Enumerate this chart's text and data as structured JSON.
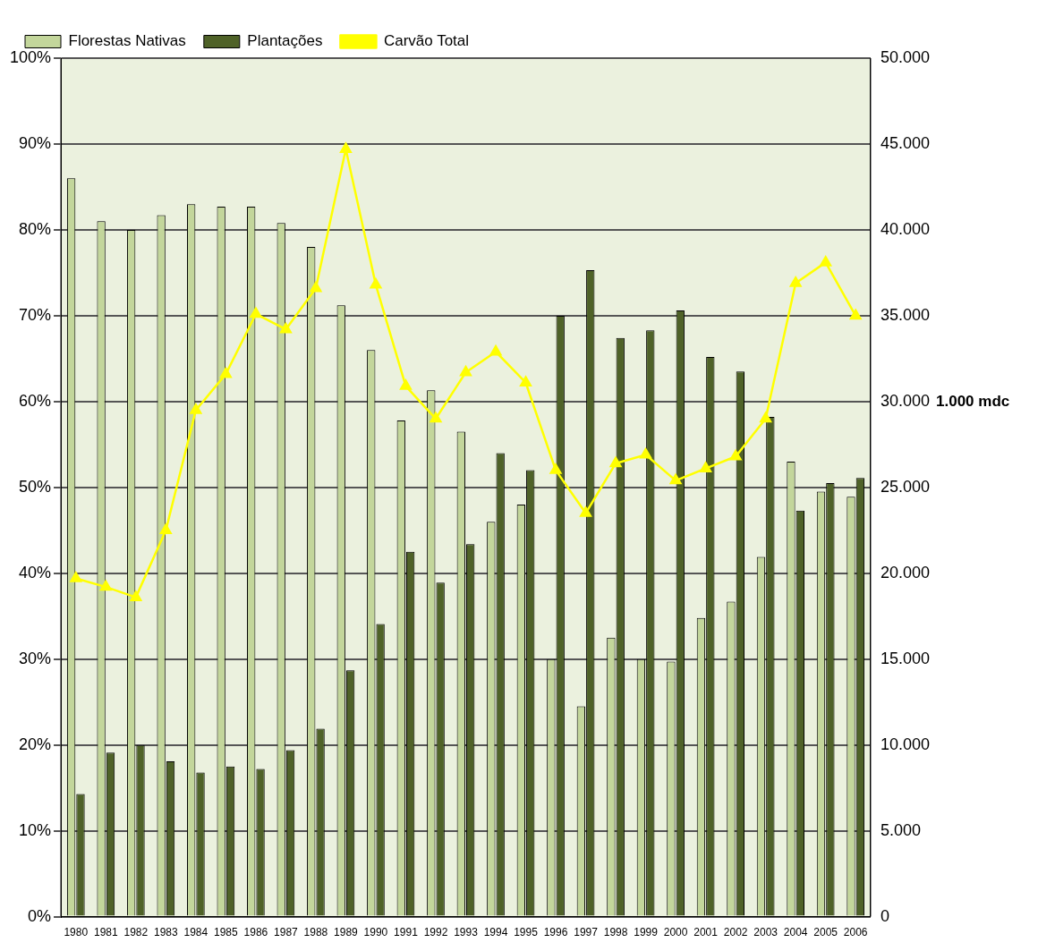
{
  "chart_data": {
    "type": "bar",
    "y2label": "1.000 mdc",
    "legend": "top",
    "grid": "y",
    "marker": "triangle",
    "line_style": "solid",
    "categories": [
      "1980",
      "1981",
      "1982",
      "1983",
      "1984",
      "1985",
      "1986",
      "1987",
      "1988",
      "1989",
      "1990",
      "1991",
      "1992",
      "1993",
      "1994",
      "1995",
      "1996",
      "1997",
      "1998",
      "1999",
      "2000",
      "2001",
      "2002",
      "2003",
      "2004",
      "2005",
      "2006"
    ],
    "ylim": [
      0,
      100
    ],
    "yticks": [
      {
        "value": 0,
        "label": "0%"
      },
      {
        "value": 10,
        "label": "10%"
      },
      {
        "value": 20,
        "label": "20%"
      },
      {
        "value": 30,
        "label": "30%"
      },
      {
        "value": 40,
        "label": "40%"
      },
      {
        "value": 50,
        "label": "50%"
      },
      {
        "value": 60,
        "label": "60%"
      },
      {
        "value": 70,
        "label": "70%"
      },
      {
        "value": 80,
        "label": "80%"
      },
      {
        "value": 90,
        "label": "90%"
      },
      {
        "value": 100,
        "label": "100%"
      }
    ],
    "y2lim": [
      0,
      50000
    ],
    "y2ticks": [
      0,
      {
        "value": 5000,
        "label": "5.000"
      },
      {
        "value": 10000,
        "label": "10.000"
      },
      {
        "value": 15000,
        "label": "15.000"
      },
      {
        "value": 20000,
        "label": "20.000"
      },
      {
        "value": 25000,
        "label": "25.000"
      },
      {
        "value": 30000,
        "label": "30.000"
      },
      {
        "value": 35000,
        "label": "35.000"
      },
      {
        "value": 40000,
        "label": "40.000"
      },
      {
        "value": 45000,
        "label": "45.000"
      },
      {
        "value": 50000,
        "label": "50.000"
      }
    ],
    "series": [
      {
        "name": "Florestas Nativas",
        "color": "#c3d69b",
        "values": [
          86,
          81,
          80,
          81.7,
          83,
          82.7,
          82.7,
          80.8,
          78,
          71.2,
          66,
          57.8,
          61.3,
          56.5,
          46,
          48,
          30,
          24.5,
          32.5,
          30,
          29.7,
          34.8,
          36.7,
          41.9,
          53,
          49.5,
          48.9
        ]
      },
      {
        "name": "Plantações",
        "color": "#4f6228",
        "values": [
          14.3,
          19.1,
          20,
          18.1,
          16.8,
          17.5,
          17.2,
          19.4,
          21.9,
          28.7,
          34.1,
          42.5,
          38.9,
          43.4,
          54,
          52,
          70,
          75.3,
          67.4,
          68.3,
          70.6,
          65.2,
          63.5,
          58.2,
          47.3,
          50.5,
          51.1
        ]
      },
      {
        "name": "Carvão Total",
        "type": "line",
        "axis": "y2",
        "color": "#ffff00",
        "values": [
          19700,
          19200,
          18600,
          22500,
          29500,
          31600,
          35100,
          34200,
          36600,
          44700,
          36800,
          30900,
          29000,
          31700,
          32900,
          31100,
          26000,
          23500,
          26400,
          26900,
          25400,
          26100,
          26800,
          29000,
          36900,
          38100,
          35000
        ]
      }
    ]
  }
}
